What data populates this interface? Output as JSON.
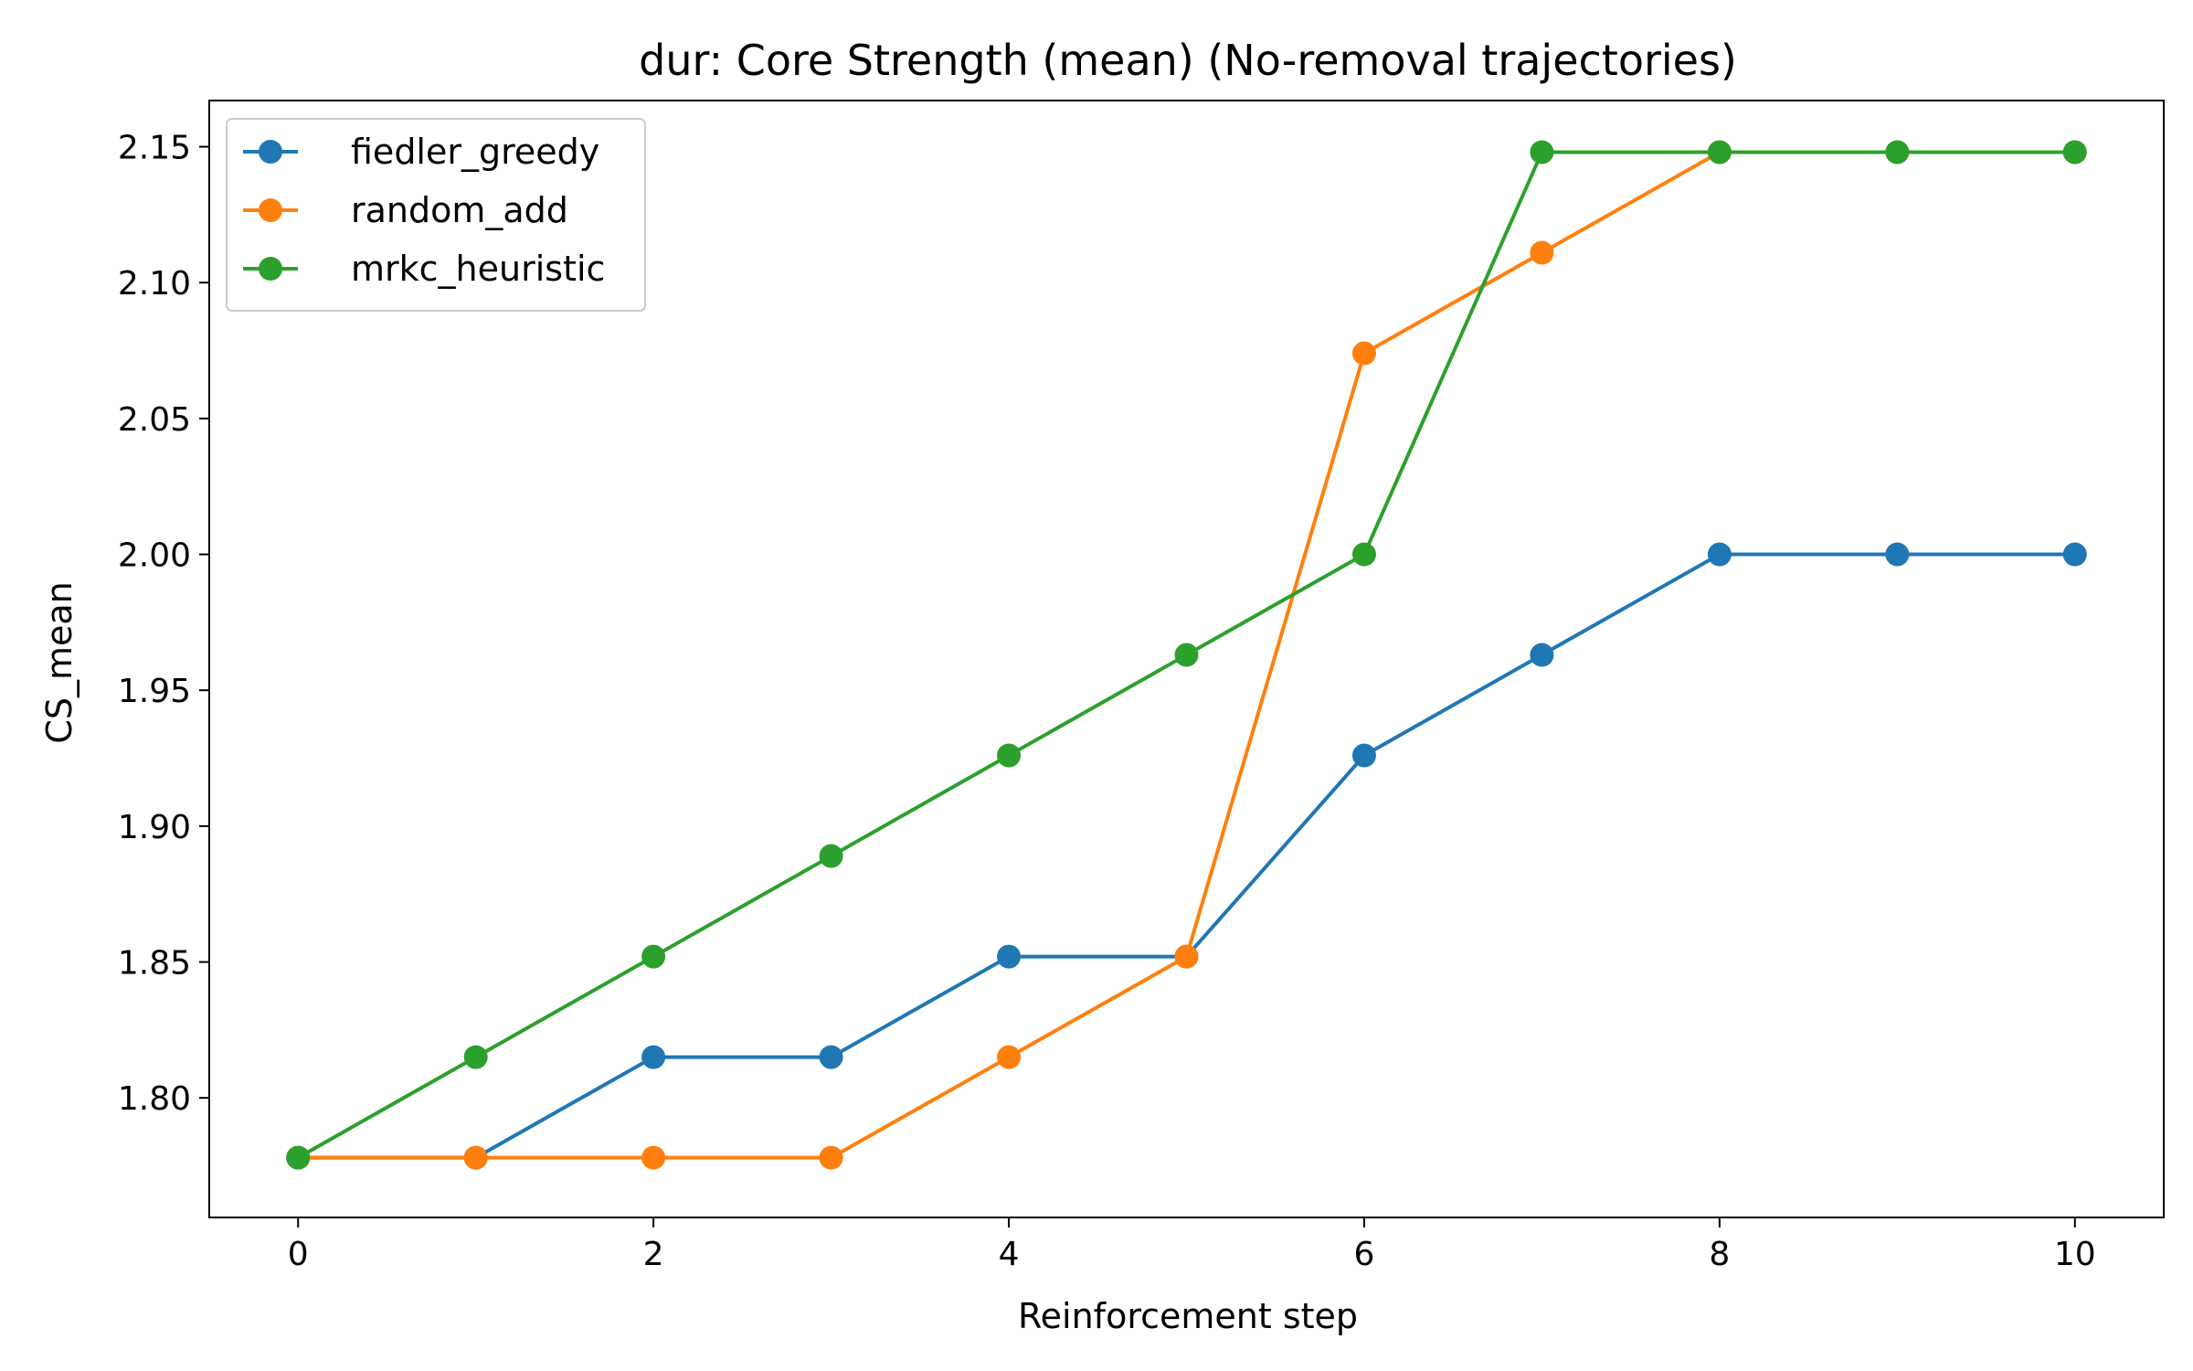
{
  "chart_data": {
    "type": "line",
    "title": "dur: Core Strength (mean) (No-removal trajectories)",
    "xlabel": "Reinforcement step",
    "ylabel": "CS_mean",
    "x": [
      0,
      1,
      2,
      3,
      4,
      5,
      6,
      7,
      8,
      9,
      10
    ],
    "xlim": [
      -0.5,
      10.5
    ],
    "ylim": [
      1.756,
      2.167
    ],
    "xticks": [
      0,
      2,
      4,
      6,
      8,
      10
    ],
    "yticks": [
      1.8,
      1.85,
      1.9,
      1.95,
      2.0,
      2.05,
      2.1,
      2.15
    ],
    "ytick_labels": [
      "1.80",
      "1.85",
      "1.90",
      "1.95",
      "2.00",
      "2.05",
      "2.10",
      "2.15"
    ],
    "grid": false,
    "legend_position": "top-left",
    "series": [
      {
        "name": "fiedler_greedy",
        "color": "#1f77b4",
        "values": [
          1.778,
          1.778,
          1.815,
          1.815,
          1.852,
          1.852,
          1.926,
          1.963,
          2.0,
          2.0,
          2.0
        ]
      },
      {
        "name": "random_add",
        "color": "#ff7f0e",
        "values": [
          1.778,
          1.778,
          1.778,
          1.778,
          1.815,
          1.852,
          2.074,
          2.111,
          2.148,
          2.148,
          2.148
        ]
      },
      {
        "name": "mrkc_heuristic",
        "color": "#2ca02c",
        "values": [
          1.778,
          1.815,
          1.852,
          1.889,
          1.926,
          1.963,
          2.0,
          2.148,
          2.148,
          2.148,
          2.148
        ]
      }
    ]
  }
}
